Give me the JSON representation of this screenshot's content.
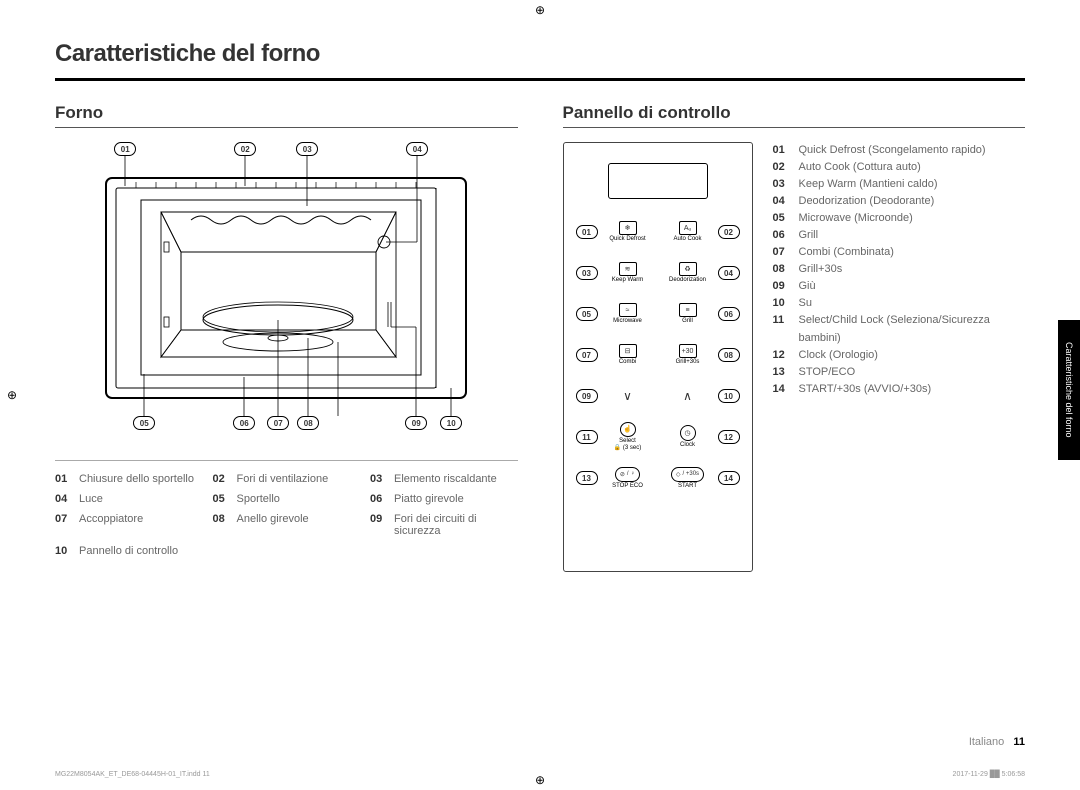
{
  "title": "Caratteristiche del forno",
  "col1_heading": "Forno",
  "col2_heading": "Pannello di controllo",
  "oven_callouts_top": [
    "01",
    "02",
    "03",
    "04"
  ],
  "oven_callouts_bottom": [
    "05",
    "06",
    "07",
    "08",
    "09",
    "10"
  ],
  "forno_legend": [
    {
      "n": "01",
      "t": "Chiusure dello sportello"
    },
    {
      "n": "02",
      "t": "Fori di ventilazione"
    },
    {
      "n": "03",
      "t": "Elemento riscaldante"
    },
    {
      "n": "04",
      "t": "Luce"
    },
    {
      "n": "05",
      "t": "Sportello"
    },
    {
      "n": "06",
      "t": "Piatto girevole"
    },
    {
      "n": "07",
      "t": "Accoppiatore"
    },
    {
      "n": "08",
      "t": "Anello girevole"
    },
    {
      "n": "09",
      "t": "Fori dei circuiti di sicurezza"
    },
    {
      "n": "10",
      "t": "Pannello di controllo"
    }
  ],
  "panel_rows": [
    {
      "l": "01",
      "ic1": "snow",
      "lb1": "Quick Defrost",
      "ic2": "auto",
      "lb2": "Auto Cook",
      "r": "02"
    },
    {
      "l": "03",
      "ic1": "warm",
      "lb1": "Keep Warm",
      "ic2": "deo",
      "lb2": "Deodorization",
      "r": "04"
    },
    {
      "l": "05",
      "ic1": "mw",
      "lb1": "Microwave",
      "ic2": "grill",
      "lb2": "Grill",
      "r": "06"
    },
    {
      "l": "07",
      "ic1": "combi",
      "lb1": "Combi",
      "ic2": "g30",
      "lb2": "Grill+30s",
      "r": "08"
    }
  ],
  "panel_arrows": {
    "l": "09",
    "down": "∨",
    "up": "∧",
    "r": "10"
  },
  "panel_select_clock": {
    "l": "11",
    "lb1": "Select",
    "sub1": "(3 sec)",
    "lb2": "Clock",
    "r": "12"
  },
  "panel_bottom": {
    "l": "13",
    "stop_icon": "⊘",
    "stop_label": "STOP",
    "eco_icon": "♀",
    "eco_label": "ECO",
    "start_icon": "◇",
    "start_extra": "/ +30s",
    "start_label": "START",
    "r": "14"
  },
  "panel_list": [
    {
      "n": "01",
      "t": "Quick Defrost (Scongelamento rapido)"
    },
    {
      "n": "02",
      "t": "Auto Cook (Cottura auto)"
    },
    {
      "n": "03",
      "t": "Keep Warm (Mantieni caldo)"
    },
    {
      "n": "04",
      "t": "Deodorization (Deodorante)"
    },
    {
      "n": "05",
      "t": "Microwave (Microonde)"
    },
    {
      "n": "06",
      "t": "Grill"
    },
    {
      "n": "07",
      "t": "Combi (Combinata)"
    },
    {
      "n": "08",
      "t": "Grill+30s"
    },
    {
      "n": "09",
      "t": "Giù"
    },
    {
      "n": "10",
      "t": "Su"
    },
    {
      "n": "11",
      "t": "Select/Child Lock (Seleziona/Sicurezza bambini)"
    },
    {
      "n": "12",
      "t": "Clock (Orologio)"
    },
    {
      "n": "13",
      "t": "STOP/ECO"
    },
    {
      "n": "14",
      "t": "START/+30s (AVVIO/+30s)"
    }
  ],
  "side_tab": "Caratteristiche del forno",
  "footer_lang": "Italiano",
  "footer_page": "11",
  "print_left": "MG22M8054AK_ET_DE68-04445H-01_IT.indd   11",
  "print_right": "2017-11-29   ██ 5:06:58"
}
